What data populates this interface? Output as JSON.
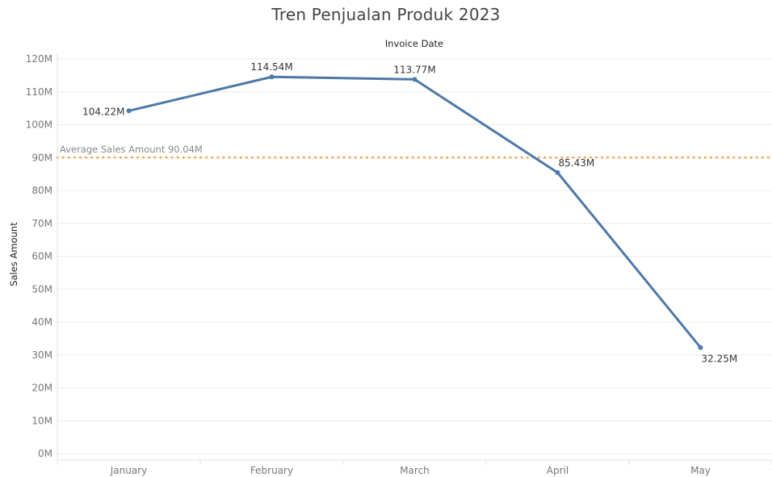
{
  "chart_data": {
    "type": "line",
    "title": "Tren Penjualan Produk 2023",
    "xlabel": "Invoice Date",
    "ylabel": "Sales Amount",
    "categories": [
      "January",
      "February",
      "March",
      "April",
      "May"
    ],
    "series": [
      {
        "values": [
          104.22,
          114.54,
          113.77,
          85.43,
          32.25
        ],
        "data_labels": [
          "104.22M",
          "114.54M",
          "113.77M",
          "85.43M",
          "32.25M"
        ],
        "color": "#4e79a7"
      }
    ],
    "ylim": [
      0,
      120
    ],
    "yticks": [
      0,
      10,
      20,
      30,
      40,
      50,
      60,
      70,
      80,
      90,
      100,
      110,
      120
    ],
    "ytick_labels": [
      "0M",
      "10M",
      "20M",
      "30M",
      "40M",
      "50M",
      "60M",
      "70M",
      "80M",
      "90M",
      "100M",
      "110M",
      "120M"
    ],
    "reference_line": {
      "label": "Average Sales Amount 90.04M",
      "value": 90.04,
      "color": "#f28e2b",
      "style": "dotted"
    },
    "grid": true,
    "x_axis_position": "top"
  }
}
